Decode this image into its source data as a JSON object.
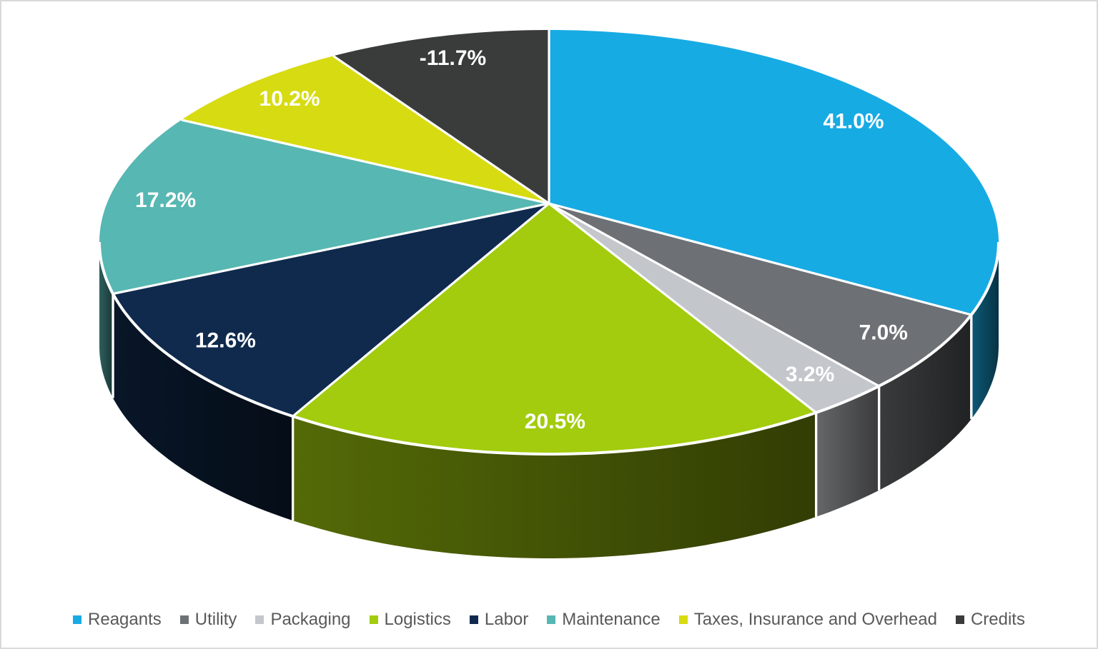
{
  "chart_data": {
    "type": "pie",
    "style": "3d",
    "categories": [
      "Reagants",
      "Utility",
      "Packaging",
      "Logistics",
      "Labor",
      "Maintenance",
      "Taxes, Insurance and Overhead",
      "Credits"
    ],
    "values": [
      41.0,
      7.0,
      3.2,
      20.5,
      12.6,
      17.2,
      10.2,
      -11.7
    ],
    "labels": [
      "41.0%",
      "7.0%",
      "3.2%",
      "20.5%",
      "12.6%",
      "17.2%",
      "10.2%",
      "-11.7%"
    ],
    "colors": [
      "#17ABE4",
      "#6D7175",
      "#C3C6CA",
      "#A2CC0D",
      "#0F2A4D",
      "#57B7B2",
      "#D7DB11",
      "#3A3B3B"
    ],
    "label_color": "#FFFFFF",
    "separator_color": "#FFFFFF",
    "legend_position": "bottom",
    "legend_text_color": "#595959",
    "start_angle_deg": 0,
    "direction": "clockwise",
    "negative_values_drawn_absolute": true
  }
}
